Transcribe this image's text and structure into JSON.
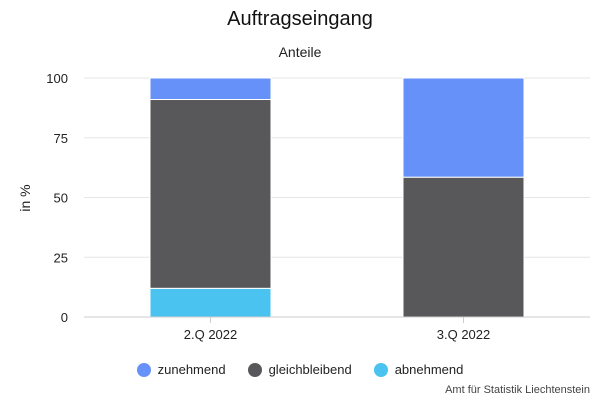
{
  "chart_data": {
    "type": "bar",
    "stacked": true,
    "title": "Auftragseingang",
    "subtitle": "Anteile",
    "ylabel": "in %",
    "xlabel": "",
    "ylim": [
      0,
      100
    ],
    "yticks": [
      0,
      25,
      50,
      75,
      100
    ],
    "grid": true,
    "legend_position": "bottom",
    "categories": [
      "2.Q 2022",
      "3.Q 2022"
    ],
    "series": [
      {
        "name": "abnehmend",
        "color": "#4bc3f0",
        "values": [
          12,
          0
        ]
      },
      {
        "name": "gleichbleibend",
        "color": "#58585a",
        "values": [
          79,
          58.5
        ]
      },
      {
        "name": "zunehmend",
        "color": "#6691f8",
        "values": [
          9,
          41.5
        ]
      }
    ],
    "legend_order": [
      "zunehmend",
      "gleichbleibend",
      "abnehmend"
    ]
  },
  "credit": "Amt für Statistik Liechtenstein"
}
